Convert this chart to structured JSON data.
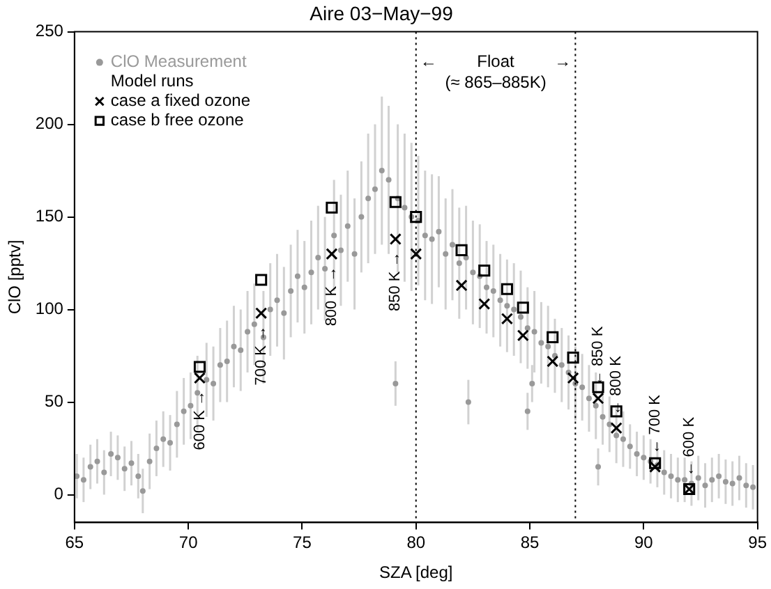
{
  "chart_data": {
    "type": "scatter",
    "title": "Aire 03−May−99",
    "xlabel": "SZA [deg]",
    "ylabel": "ClO [pptv]",
    "xlim": [
      65,
      95
    ],
    "xticks": [
      65,
      70,
      75,
      80,
      85,
      90,
      95
    ],
    "ylim": [
      -15,
      250
    ],
    "yticks": [
      0,
      50,
      100,
      150,
      200,
      250
    ],
    "grid": false,
    "legend": "top left",
    "legend_title": "Model runs",
    "series": [
      {
        "name": "ClO Measurement",
        "color": "#999999",
        "marker": "circle",
        "x": [
          65.1,
          65.4,
          65.7,
          66.0,
          66.3,
          66.6,
          66.9,
          67.2,
          67.5,
          67.8,
          68.0,
          68.3,
          68.6,
          68.9,
          69.2,
          69.5,
          69.8,
          70.1,
          70.4,
          70.8,
          71.1,
          71.4,
          71.7,
          72.0,
          72.3,
          72.6,
          72.9,
          73.3,
          73.6,
          73.9,
          74.2,
          74.5,
          74.8,
          75.1,
          75.4,
          75.7,
          76.0,
          76.4,
          76.7,
          77.0,
          77.3,
          77.6,
          77.9,
          78.2,
          78.5,
          78.8,
          79.2,
          79.5,
          79.8,
          80.1,
          80.4,
          80.7,
          81.0,
          81.3,
          81.6,
          81.9,
          82.2,
          82.5,
          82.8,
          83.1,
          83.4,
          83.7,
          84.0,
          84.3,
          84.6,
          84.9,
          85.2,
          85.5,
          85.8,
          86.1,
          86.4,
          86.7,
          87.0,
          87.3,
          87.6,
          87.9,
          88.2,
          88.5,
          88.8,
          89.1,
          89.4,
          89.7,
          90.0,
          90.3,
          90.6,
          90.9,
          91.2,
          91.5,
          91.8,
          92.1,
          92.4,
          92.7,
          93.0,
          93.3,
          93.6,
          93.9,
          94.2,
          94.5,
          94.8,
          84.9,
          85.1,
          88.0,
          79.1,
          82.3
        ],
        "values": [
          10,
          8,
          15,
          18,
          12,
          22,
          20,
          14,
          17,
          10,
          2,
          18,
          25,
          30,
          28,
          38,
          45,
          48,
          55,
          62,
          60,
          70,
          72,
          80,
          78,
          88,
          92,
          85,
          100,
          105,
          98,
          110,
          118,
          112,
          120,
          128,
          122,
          140,
          132,
          145,
          130,
          150,
          160,
          165,
          175,
          170,
          160,
          155,
          150,
          148,
          140,
          138,
          142,
          130,
          135,
          125,
          128,
          120,
          118,
          112,
          110,
          105,
          102,
          100,
          96,
          90,
          88,
          82,
          80,
          75,
          70,
          66,
          60,
          58,
          52,
          48,
          42,
          38,
          32,
          30,
          26,
          22,
          20,
          18,
          16,
          12,
          10,
          8,
          8,
          6,
          9,
          5,
          8,
          10,
          7,
          6,
          9,
          5,
          4,
          45,
          60,
          15,
          60,
          50
        ],
        "errors": [
          12,
          12,
          12,
          12,
          12,
          12,
          12,
          12,
          12,
          12,
          12,
          15,
          15,
          15,
          15,
          18,
          18,
          18,
          20,
          20,
          20,
          20,
          22,
          22,
          22,
          22,
          22,
          25,
          25,
          25,
          25,
          25,
          25,
          25,
          28,
          28,
          28,
          30,
          30,
          30,
          30,
          30,
          35,
          35,
          40,
          40,
          40,
          40,
          40,
          35,
          35,
          35,
          30,
          30,
          30,
          30,
          28,
          28,
          28,
          25,
          25,
          25,
          25,
          25,
          25,
          22,
          22,
          22,
          22,
          20,
          20,
          20,
          20,
          18,
          18,
          18,
          15,
          15,
          15,
          15,
          12,
          12,
          12,
          12,
          12,
          12,
          12,
          12,
          12,
          12,
          12,
          12,
          12,
          12,
          12,
          12,
          12,
          12,
          12,
          10,
          10,
          10,
          12,
          12
        ]
      },
      {
        "name": "case a fixed ozone",
        "color": "#000000",
        "marker": "cross",
        "x": [
          70.5,
          73.2,
          76.3,
          79.1,
          80.0,
          82.0,
          83.0,
          84.0,
          84.7,
          86.0,
          86.9,
          88.0,
          88.8,
          90.5,
          92.0
        ],
        "values": [
          63,
          98,
          130,
          138,
          130,
          113,
          103,
          95,
          86,
          72,
          63,
          52,
          36,
          15,
          3
        ]
      },
      {
        "name": "case b free ozone",
        "color": "#000000",
        "marker": "square",
        "x": [
          70.5,
          73.2,
          76.3,
          79.1,
          80.0,
          82.0,
          83.0,
          84.0,
          84.7,
          86.0,
          86.9,
          88.0,
          88.8,
          90.5,
          92.0
        ],
        "values": [
          69,
          116,
          155,
          158,
          150,
          132,
          121,
          111,
          101,
          85,
          74,
          58,
          45,
          17,
          3
        ]
      }
    ],
    "ref_lines": [
      {
        "axis": "x",
        "value": 80,
        "line_style": "dotted",
        "color": "#000000"
      },
      {
        "axis": "x",
        "value": 87,
        "line_style": "dotted",
        "color": "#000000"
      }
    ],
    "annotations": [
      "Float",
      "(≈ 865–885K)",
      "←",
      "→",
      {
        "text": "600 K →",
        "x": 70.5,
        "y": 63
      },
      {
        "text": "700 K →",
        "x": 73.2,
        "y": 98
      },
      {
        "text": "800 K →",
        "x": 76.3,
        "y": 130
      },
      {
        "text": "850 K →",
        "x": 79.1,
        "y": 138
      },
      {
        "text": "← 850 K",
        "x": 88.0,
        "y": 52
      },
      {
        "text": "← 800 K",
        "x": 88.8,
        "y": 36
      },
      {
        "text": "← 700 K",
        "x": 90.5,
        "y": 15
      },
      {
        "text": "← 600 K",
        "x": 92.0,
        "y": 3
      }
    ]
  }
}
